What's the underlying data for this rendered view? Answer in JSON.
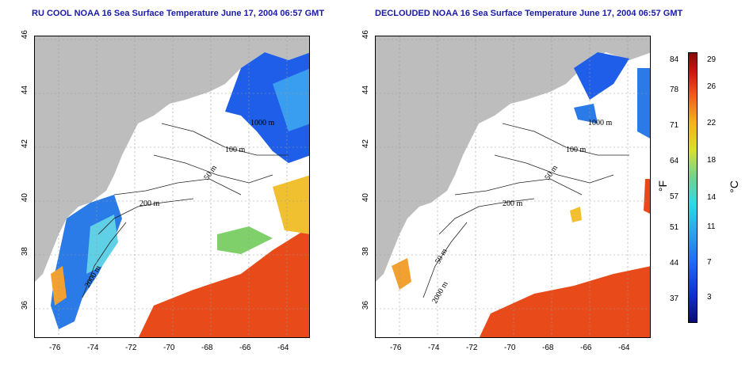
{
  "titles": {
    "left": "RU COOL NOAA 16 Sea Surface Temperature June 17, 2004 06:57 GMT",
    "right": "DECLOUDED NOAA 16 Sea Surface Temperature June 17, 2004 06:57 GMT"
  },
  "axes": {
    "x_ticks": [
      "-76",
      "-74",
      "-72",
      "-70",
      "-68",
      "-66",
      "-64"
    ],
    "y_ticks": [
      "46",
      "44",
      "42",
      "40",
      "38",
      "36"
    ]
  },
  "contours": {
    "left": [
      "1000 m",
      "100 m",
      "50 m",
      "200 m",
      "2000 m"
    ],
    "right": [
      "1000 m",
      "100 m",
      "50 m",
      "200 m",
      "50 m",
      "2000 m"
    ]
  },
  "colorbar": {
    "fahrenheit_ticks": [
      "84",
      "78",
      "71",
      "64",
      "57",
      "51",
      "44",
      "37"
    ],
    "celsius_ticks": [
      "29",
      "26",
      "22",
      "18",
      "14",
      "11",
      "7",
      "3"
    ],
    "unit_f": "°F",
    "unit_c": "°C"
  },
  "colors": {
    "land": "#bdbdbd",
    "cloud_mask": "#ffffff",
    "title": "#1a1aa8",
    "warm": "#e84a1a",
    "cold": "#1a5ae0"
  }
}
